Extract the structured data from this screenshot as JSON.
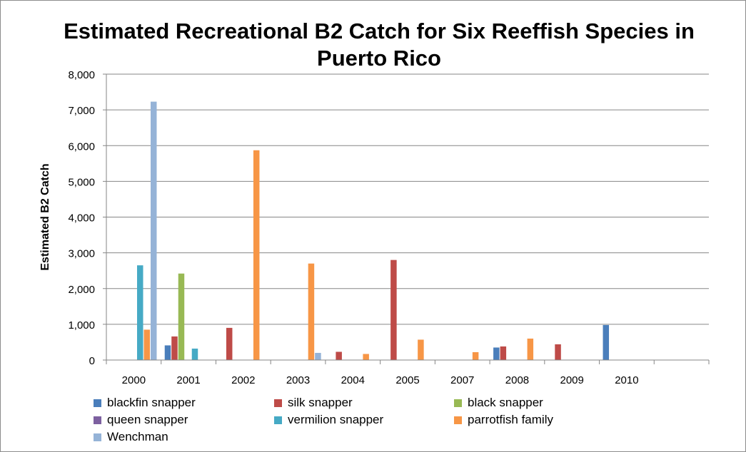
{
  "chart_data": {
    "type": "bar",
    "title": "Estimated Recreational B2 Catch for Six Reeffish Species in\nPuerto Rico",
    "ylabel": "Estimated  B2 Catch",
    "xlabel": "",
    "ylim": [
      0,
      8000
    ],
    "yticks": [
      "0",
      "1,000",
      "2,000",
      "3,000",
      "4,000",
      "5,000",
      "6,000",
      "7,000",
      "8,000"
    ],
    "categories": [
      "2000",
      "2001",
      "2002",
      "2003",
      "2004",
      "2005",
      "2007",
      "2008",
      "2009",
      "2010",
      ""
    ],
    "grid": true,
    "legend_position": "bottom",
    "series": [
      {
        "name": "blackfin snapper",
        "color": "#4a7ebb",
        "values": [
          0,
          410,
          0,
          0,
          0,
          0,
          0,
          350,
          0,
          980,
          0
        ]
      },
      {
        "name": "silk snapper",
        "color": "#be4b48",
        "values": [
          0,
          660,
          900,
          0,
          230,
          2800,
          0,
          380,
          440,
          0,
          0
        ]
      },
      {
        "name": "black snapper",
        "color": "#98b954",
        "values": [
          0,
          2420,
          0,
          0,
          0,
          0,
          0,
          0,
          0,
          0,
          0
        ]
      },
      {
        "name": "queen snapper",
        "color": "#7d60a0",
        "values": [
          0,
          0,
          0,
          0,
          0,
          0,
          0,
          0,
          0,
          0,
          0
        ]
      },
      {
        "name": "vermilion snapper",
        "color": "#46aac5",
        "values": [
          2650,
          320,
          0,
          0,
          0,
          0,
          0,
          0,
          0,
          0,
          0
        ]
      },
      {
        "name": "parrotfish family",
        "color": "#f79646",
        "values": [
          850,
          0,
          5870,
          2700,
          170,
          570,
          220,
          600,
          0,
          0,
          0
        ]
      },
      {
        "name": "Wenchman",
        "color": "#95b3d7",
        "values": [
          7230,
          0,
          0,
          200,
          0,
          0,
          0,
          0,
          0,
          0,
          0
        ]
      }
    ]
  }
}
